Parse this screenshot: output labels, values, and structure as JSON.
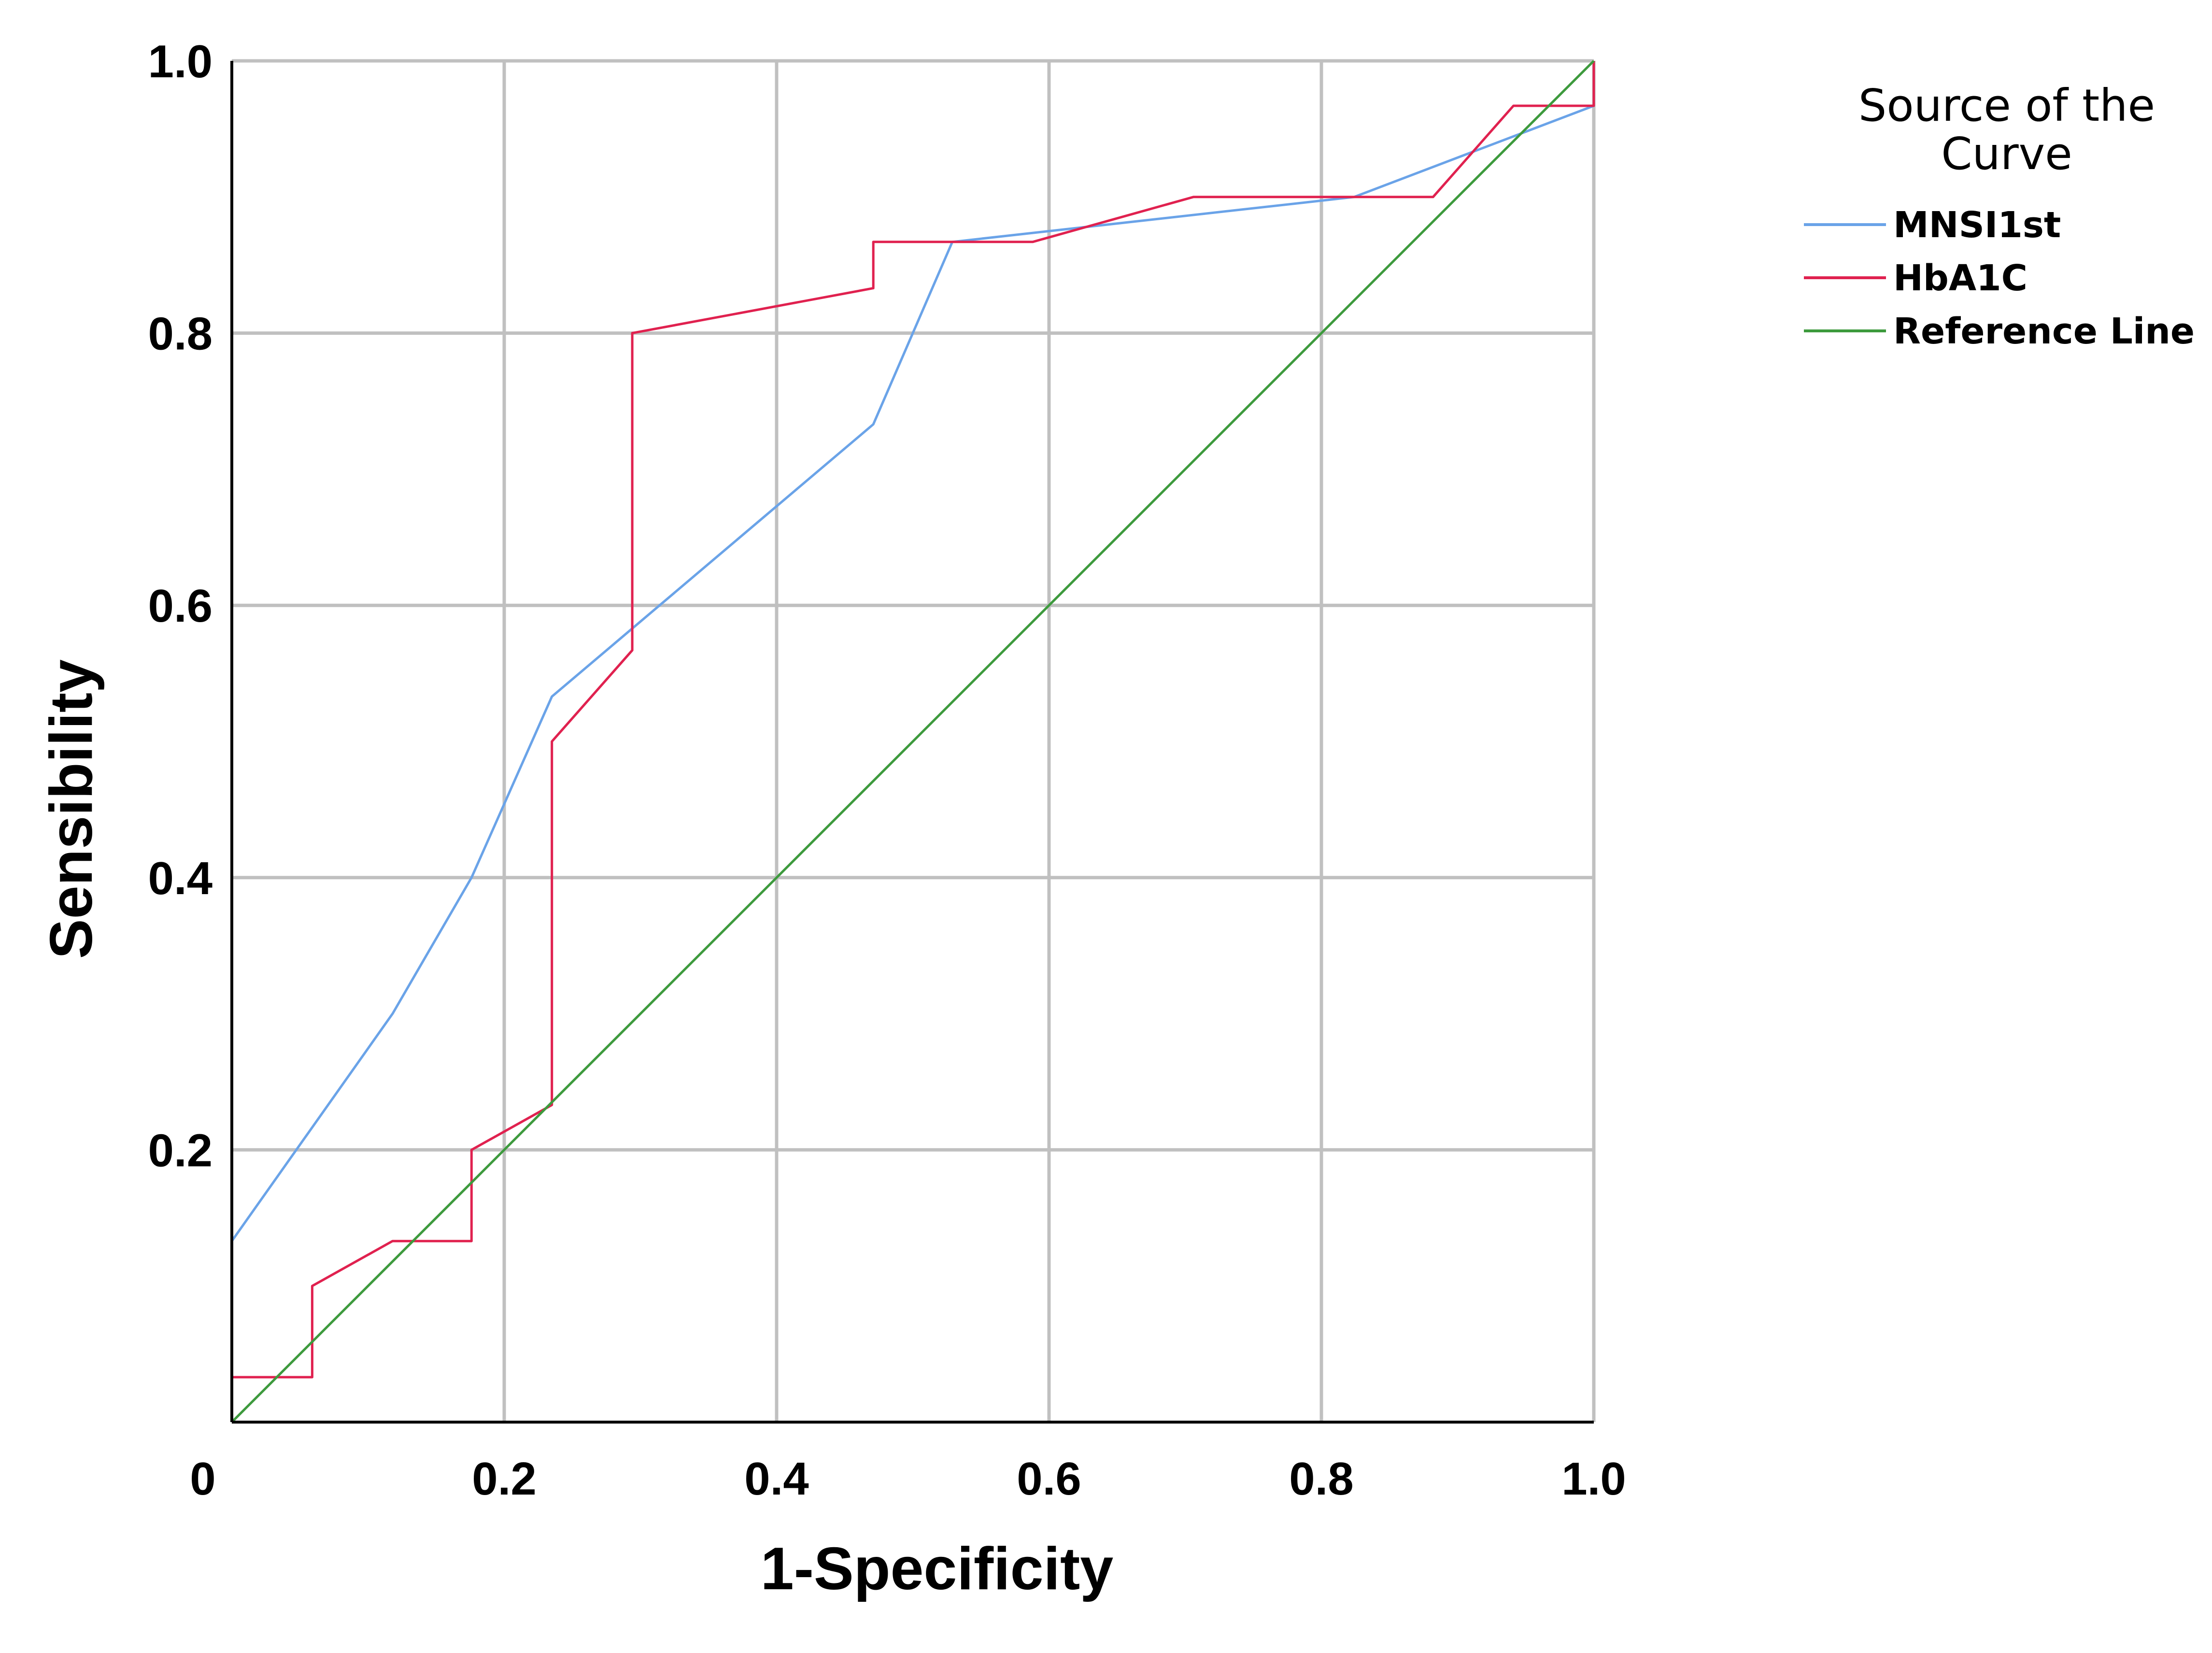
{
  "chart_data": {
    "type": "line",
    "title": "",
    "xlabel": "1-Specificity",
    "ylabel": "Sensibility",
    "xlim": [
      0,
      1
    ],
    "ylim": [
      0,
      1
    ],
    "grid": true,
    "x_ticks": [
      {
        "value": 0,
        "label": "0"
      },
      {
        "value": 0.2,
        "label": "0.2"
      },
      {
        "value": 0.4,
        "label": "0.4"
      },
      {
        "value": 0.6,
        "label": "0.6"
      },
      {
        "value": 0.8,
        "label": "0.8"
      },
      {
        "value": 1.0,
        "label": "1.0"
      }
    ],
    "y_ticks": [
      {
        "value": 0.2,
        "label": "0.2"
      },
      {
        "value": 0.4,
        "label": "0.4"
      },
      {
        "value": 0.6,
        "label": "0.6"
      },
      {
        "value": 0.8,
        "label": "0.8"
      },
      {
        "value": 1.0,
        "label": "1.0"
      }
    ],
    "legend": {
      "title_lines": [
        "Source of the",
        "Curve"
      ],
      "placement": "top-right, outside plot"
    },
    "series": [
      {
        "name": "MNSI1st",
        "color": "#6aa3e8",
        "x": [
          0,
          0,
          0.118,
          0.176,
          0.235,
          0.471,
          0.529,
          0.824,
          1.0,
          1.0
        ],
        "y": [
          0,
          0.133,
          0.3,
          0.4,
          0.533,
          0.733,
          0.867,
          0.9,
          0.967,
          1.0
        ]
      },
      {
        "name": "HbA1C",
        "color": "#e0214f",
        "x": [
          0,
          0,
          0.059,
          0.059,
          0.118,
          0.176,
          0.176,
          0.235,
          0.235,
          0.294,
          0.294,
          0.471,
          0.471,
          0.588,
          0.706,
          0.882,
          0.941,
          1.0,
          1.0
        ],
        "y": [
          0,
          0.033,
          0.033,
          0.1,
          0.133,
          0.133,
          0.2,
          0.233,
          0.5,
          0.567,
          0.8,
          0.833,
          0.867,
          0.867,
          0.9,
          0.9,
          0.967,
          0.967,
          1.0
        ]
      },
      {
        "name": "Reference Line",
        "color": "#3d9a3d",
        "x": [
          0,
          1
        ],
        "y": [
          0,
          1
        ]
      }
    ]
  }
}
